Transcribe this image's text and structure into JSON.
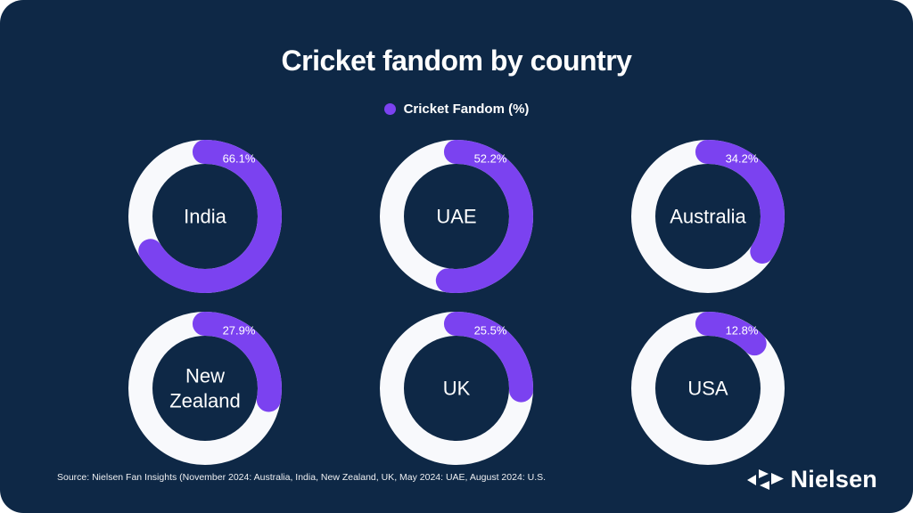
{
  "page": {
    "background": "#FFFFFF",
    "card_color": "#0E2846"
  },
  "header": {
    "title": "Cricket fandom by country"
  },
  "legend": {
    "label": "Cricket Fandom (%)",
    "dot_color": "#7B42F0"
  },
  "chart_data": {
    "type": "pie",
    "subtype": "donut-grid",
    "title": "Cricket fandom by country",
    "series_name": "Cricket Fandom (%)",
    "categories": [
      "India",
      "UAE",
      "Australia",
      "New Zealand",
      "UK",
      "USA"
    ],
    "values": [
      66.1,
      52.2,
      34.2,
      27.9,
      25.5,
      12.8
    ],
    "value_labels": [
      "66.1%",
      "52.2%",
      "34.2%",
      "27.9%",
      "25.5%",
      "12.8%"
    ],
    "value_range": [
      0,
      100
    ],
    "arc_start": "top",
    "arc_direction": "clockwise",
    "ring_fill_color": "#7B42F0",
    "ring_track_color": "#F8F9FC",
    "legend_position": "top-center",
    "layout": "3 columns x 2 rows"
  },
  "footer": {
    "source": "Source: Nielsen Fan Insights (November 2024: Australia, India, New Zealand, UK, May 2024: UAE, August 2024: U.S."
  },
  "branding": {
    "logo_text": "Nielsen",
    "logo_icon": "nielsen-triangles-icon",
    "logo_color": "#FFFFFF"
  }
}
